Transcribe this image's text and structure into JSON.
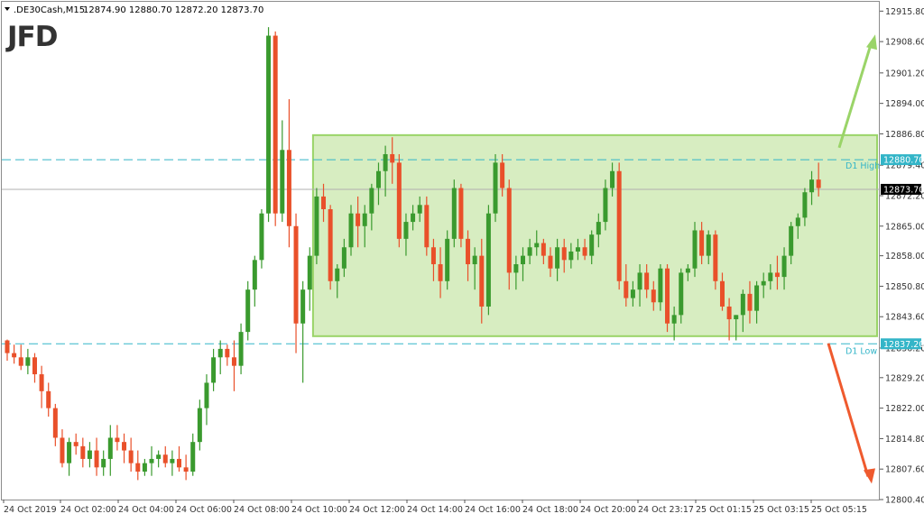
{
  "header": {
    "symbol": ".DE30Cash,M15",
    "ohlc": "12874.90 12880.70 12872.20 12873.70"
  },
  "logo": "JFD",
  "colors": {
    "bull": "#3a9a2e",
    "bear": "#e9502a",
    "range_fill": "#c6e6a6",
    "range_border": "#9ad468",
    "level_line": "#33b5c8",
    "level_tag": "#33b5c8",
    "price_tag": "#000000",
    "up_arrow": "#9ad468",
    "down_arrow": "#ef5a2e",
    "grid_text": "#333333"
  },
  "chart_data": {
    "type": "candlestick",
    "timeframe": "M15",
    "y_ticks": [
      "12915.80",
      "12908.60",
      "12901.20",
      "12894.00",
      "12886.80",
      "12879.40",
      "12872.20",
      "12865.00",
      "12858.00",
      "12850.80",
      "12843.60",
      "12836.20",
      "12829.20",
      "12822.00",
      "12814.80",
      "12807.60",
      "12800.40"
    ],
    "ylim": [
      12800.4,
      12918.0
    ],
    "x_ticks": [
      "24 Oct 2019",
      "24 Oct 02:00",
      "24 Oct 04:00",
      "24 Oct 06:00",
      "24 Oct 08:00",
      "24 Oct 10:00",
      "24 Oct 12:00",
      "24 Oct 14:00",
      "24 Oct 16:00",
      "24 Oct 18:00",
      "24 Oct 20:00",
      "24 Oct 23:17",
      "25 Oct 01:15",
      "25 Oct 03:15",
      "25 Oct 05:15"
    ],
    "levels": [
      {
        "label": "D1 High",
        "tag": "12880.70",
        "value": 12880.7
      },
      {
        "label": "D1 Low",
        "tag": "12837.20",
        "value": 12837.2
      }
    ],
    "current_price": {
      "tag": "12873.70",
      "value": 12873.7
    },
    "range_box": {
      "top": 12886.5,
      "bottom": 12839.0,
      "start_index": 45
    },
    "arrows": {
      "up_to": 12909.0,
      "down_to": 12805.0
    },
    "candles": [
      [
        12838,
        12838.2,
        12833.2,
        12835
      ],
      [
        12835,
        12837,
        12832.5,
        12834
      ],
      [
        12834,
        12837,
        12831,
        12832
      ],
      [
        12832,
        12836,
        12830,
        12834
      ],
      [
        12834,
        12835,
        12828,
        12830
      ],
      [
        12830,
        12832,
        12822,
        12826
      ],
      [
        12826,
        12828,
        12820,
        12822
      ],
      [
        12822,
        12823,
        12813,
        12815
      ],
      [
        12815,
        12817,
        12808,
        12809
      ],
      [
        12809,
        12815,
        12806,
        12814
      ],
      [
        12814,
        12816,
        12811,
        12813
      ],
      [
        12813,
        12815,
        12808,
        12810
      ],
      [
        12810,
        12814,
        12808,
        12812
      ],
      [
        12812,
        12815,
        12806,
        12808
      ],
      [
        12808,
        12812,
        12806,
        12810
      ],
      [
        12810,
        12818,
        12806,
        12815
      ],
      [
        12815,
        12818,
        12812,
        12814
      ],
      [
        12814,
        12816,
        12809,
        12812
      ],
      [
        12812,
        12815,
        12807,
        12809
      ],
      [
        12809,
        12812,
        12805,
        12807
      ],
      [
        12807,
        12810,
        12806,
        12809
      ],
      [
        12809,
        12813,
        12806,
        12810
      ],
      [
        12810,
        12812,
        12808,
        12811
      ],
      [
        12811,
        12813,
        12808,
        12809
      ],
      [
        12809,
        12812,
        12806,
        12810
      ],
      [
        12810,
        12813,
        12807,
        12808
      ],
      [
        12808,
        12811,
        12805,
        12807
      ],
      [
        12807,
        12816,
        12806,
        12814
      ],
      [
        12814,
        12824,
        12812,
        12822
      ],
      [
        12822,
        12830,
        12818,
        12828
      ],
      [
        12828,
        12836,
        12826,
        12834
      ],
      [
        12834,
        12838,
        12830,
        12836
      ],
      [
        12836,
        12837,
        12832,
        12834
      ],
      [
        12834,
        12838,
        12826,
        12832
      ],
      [
        12832,
        12842,
        12830,
        12840
      ],
      [
        12840,
        12852,
        12838,
        12850
      ],
      [
        12850,
        12858,
        12846,
        12857
      ],
      [
        12857,
        12869,
        12855,
        12868
      ],
      [
        12868,
        12912,
        12866,
        12910
      ],
      [
        12910,
        12911,
        12865,
        12868
      ],
      [
        12868,
        12890,
        12866,
        12883
      ],
      [
        12883,
        12895,
        12860,
        12865
      ],
      [
        12865,
        12868,
        12835,
        12842
      ],
      [
        12842,
        12852,
        12828,
        12850
      ],
      [
        12850,
        12860,
        12845,
        12858
      ],
      [
        12858,
        12874,
        12856,
        12872
      ],
      [
        12872,
        12875,
        12866,
        12869
      ],
      [
        12869,
        12870,
        12850,
        12852
      ],
      [
        12852,
        12856,
        12848,
        12855
      ],
      [
        12855,
        12862,
        12853,
        12860
      ],
      [
        12860,
        12870,
        12858,
        12868
      ],
      [
        12868,
        12872,
        12860,
        12865
      ],
      [
        12865,
        12870,
        12860,
        12868
      ],
      [
        12868,
        12875,
        12864,
        12874
      ],
      [
        12874,
        12880,
        12870,
        12878
      ],
      [
        12878,
        12884,
        12872,
        12882
      ],
      [
        12882,
        12886,
        12875,
        12880
      ],
      [
        12880,
        12882,
        12860,
        12862
      ],
      [
        12862,
        12868,
        12858,
        12866
      ],
      [
        12866,
        12870,
        12864,
        12868
      ],
      [
        12868,
        12872,
        12866,
        12870
      ],
      [
        12870,
        12872,
        12858,
        12860
      ],
      [
        12860,
        12862,
        12852,
        12856
      ],
      [
        12856,
        12860,
        12848,
        12852
      ],
      [
        12852,
        12864,
        12850,
        12862
      ],
      [
        12862,
        12876,
        12860,
        12874
      ],
      [
        12874,
        12875,
        12860,
        12862
      ],
      [
        12862,
        12864,
        12852,
        12856
      ],
      [
        12856,
        12860,
        12850,
        12858
      ],
      [
        12858,
        12862,
        12842,
        12846
      ],
      [
        12846,
        12870,
        12844,
        12868
      ],
      [
        12868,
        12882,
        12866,
        12880
      ],
      [
        12880,
        12882,
        12872,
        12874
      ],
      [
        12874,
        12876,
        12850,
        12854
      ],
      [
        12854,
        12858,
        12850,
        12856
      ],
      [
        12856,
        12860,
        12852,
        12858
      ],
      [
        12858,
        12862,
        12856,
        12860
      ],
      [
        12860,
        12864,
        12858,
        12861
      ],
      [
        12861,
        12862,
        12856,
        12858
      ],
      [
        12858,
        12860,
        12853,
        12855
      ],
      [
        12855,
        12862,
        12852,
        12860
      ],
      [
        12860,
        12862,
        12854,
        12857
      ],
      [
        12857,
        12861,
        12855,
        12859
      ],
      [
        12859,
        12862,
        12857,
        12860
      ],
      [
        12860,
        12862,
        12857,
        12858
      ],
      [
        12858,
        12864,
        12856,
        12863
      ],
      [
        12863,
        12868,
        12860,
        12866
      ],
      [
        12866,
        12876,
        12864,
        12874
      ],
      [
        12874,
        12880,
        12872,
        12878
      ],
      [
        12878,
        12880,
        12850,
        12852
      ],
      [
        12852,
        12856,
        12846,
        12848
      ],
      [
        12848,
        12852,
        12846,
        12850
      ],
      [
        12850,
        12856,
        12846,
        12854
      ],
      [
        12854,
        12856,
        12848,
        12850
      ],
      [
        12850,
        12852,
        12845,
        12847
      ],
      [
        12847,
        12856,
        12845,
        12855
      ],
      [
        12855,
        12856,
        12840,
        12842
      ],
      [
        12842,
        12846,
        12838,
        12844
      ],
      [
        12844,
        12855,
        12842,
        12854
      ],
      [
        12854,
        12856,
        12852,
        12855
      ],
      [
        12855,
        12866,
        12853,
        12864
      ],
      [
        12864,
        12866,
        12856,
        12858
      ],
      [
        12858,
        12864,
        12856,
        12863
      ],
      [
        12863,
        12864,
        12850,
        12852
      ],
      [
        12852,
        12854,
        12845,
        12846
      ],
      [
        12846,
        12848,
        12838,
        12843
      ],
      [
        12843,
        12844,
        12838,
        12844
      ],
      [
        12844,
        12850,
        12840,
        12849
      ],
      [
        12849,
        12852,
        12842,
        12845
      ],
      [
        12845,
        12852,
        12842,
        12851
      ],
      [
        12851,
        12854,
        12848,
        12852
      ],
      [
        12852,
        12856,
        12850,
        12854
      ],
      [
        12854,
        12858,
        12850,
        12853
      ],
      [
        12853,
        12860,
        12850,
        12858
      ],
      [
        12858,
        12866,
        12856,
        12865
      ],
      [
        12865,
        12868,
        12862,
        12867
      ],
      [
        12867,
        12874,
        12865,
        12873
      ],
      [
        12873,
        12878,
        12870,
        12876
      ],
      [
        12876,
        12880,
        12872,
        12874
      ]
    ]
  }
}
